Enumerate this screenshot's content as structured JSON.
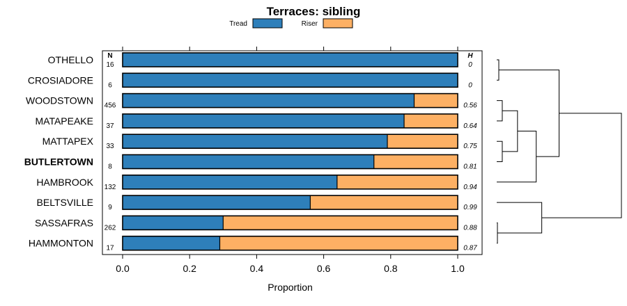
{
  "chart_data": {
    "type": "bar",
    "stacked": true,
    "orientation": "horizontal",
    "title": "Terraces: sibling",
    "xlabel": "Proportion",
    "ylabel": "",
    "xlim": [
      0,
      1
    ],
    "xticks": [
      "0.0",
      "0.2",
      "0.4",
      "0.6",
      "0.8",
      "1.0"
    ],
    "xtick_values": [
      0,
      0.2,
      0.4,
      0.6,
      0.8,
      1.0
    ],
    "legend_position": "top-center",
    "n_header": "N",
    "h_header": "H",
    "highlight": "BUTLERTOWN",
    "categories": [
      "OTHELLO",
      "CROSIADORE",
      "WOODSTOWN",
      "MATAPEAKE",
      "MATTAPEX",
      "BUTLERTOWN",
      "HAMBROOK",
      "BELTSVILLE",
      "SASSAFRAS",
      "HAMMONTON"
    ],
    "n": [
      "16",
      "6",
      "456",
      "37",
      "33",
      "8",
      "132",
      "9",
      "262",
      "17"
    ],
    "h": [
      "0",
      "0",
      "0.56",
      "0.64",
      "0.75",
      "0.81",
      "0.94",
      "0.99",
      "0.88",
      "0.87"
    ],
    "series": [
      {
        "name": "Tread",
        "color": "#2E7FBA",
        "values": [
          1.0,
          1.0,
          0.87,
          0.84,
          0.79,
          0.75,
          0.64,
          0.56,
          0.3,
          0.29
        ]
      },
      {
        "name": "Riser",
        "color": "#FDB064",
        "values": [
          0.0,
          0.0,
          0.13,
          0.16,
          0.21,
          0.25,
          0.36,
          0.44,
          0.7,
          0.71
        ]
      }
    ],
    "dendrogram": {
      "description": "hierarchical clustering of rows",
      "merges": [
        {
          "id": "c1",
          "left": "OTHELLO",
          "right": "CROSIADORE",
          "height": 0.03
        },
        {
          "id": "c2",
          "left": "WOODSTOWN",
          "right": "MATAPEAKE",
          "height": 0.08
        },
        {
          "id": "c3",
          "left": "MATTAPEX",
          "right": "BUTLERTOWN",
          "height": 0.08
        },
        {
          "id": "c4",
          "left": "c2",
          "right": "c3",
          "height": 0.3
        },
        {
          "id": "c5",
          "left": "c4",
          "right": "HAMBROOK",
          "height": 0.57
        },
        {
          "id": "c6",
          "left": "c1",
          "right": "c5",
          "height": 0.9
        },
        {
          "id": "c7",
          "left": "SASSAFRAS",
          "right": "HAMMONTON",
          "height": 0.01
        },
        {
          "id": "c8",
          "left": "BELTSVILLE",
          "right": "c7",
          "height": 0.65
        },
        {
          "id": "c9",
          "left": "c6",
          "right": "c8",
          "height": 1.8
        }
      ],
      "max_height": 1.8
    }
  }
}
